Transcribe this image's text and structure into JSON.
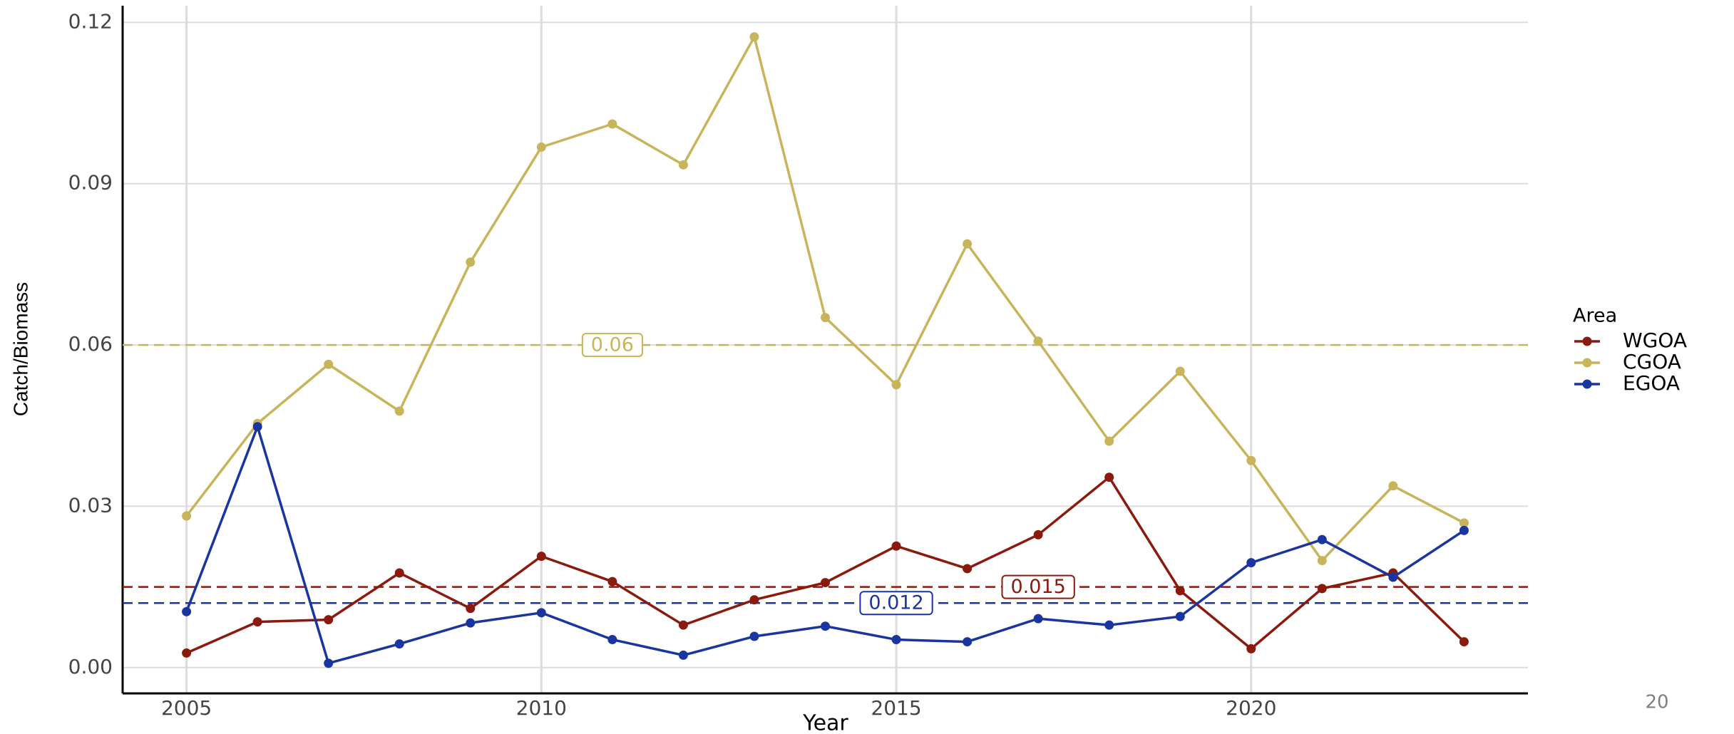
{
  "chart_data": {
    "type": "line",
    "x_label": "Year",
    "y_label": "Catch/Biomass",
    "x": [
      2005,
      2006,
      2007,
      2008,
      2009,
      2010,
      2011,
      2012,
      2013,
      2014,
      2015,
      2016,
      2017,
      2018,
      2019,
      2020,
      2021,
      2022,
      2023
    ],
    "series": [
      {
        "name": "WGOA",
        "color": "#8b1a0e",
        "values": [
          0.0027,
          0.0085,
          0.0089,
          0.0176,
          0.011,
          0.0207,
          0.016,
          0.0079,
          0.0126,
          0.0158,
          0.0226,
          0.0184,
          0.0247,
          0.0354,
          0.0143,
          0.0035,
          0.0147,
          0.0176,
          0.0048
        ]
      },
      {
        "name": "CGOA",
        "color": "#c8b45a",
        "values": [
          0.0282,
          0.0454,
          0.0564,
          0.0477,
          0.0754,
          0.0968,
          0.1011,
          0.0935,
          0.1173,
          0.0651,
          0.0526,
          0.0788,
          0.0607,
          0.0421,
          0.0551,
          0.0385,
          0.0199,
          0.0338,
          0.0269
        ]
      },
      {
        "name": "EGOA",
        "color": "#1a35a0",
        "values": [
          0.0104,
          0.0448,
          0.0008,
          0.0044,
          0.0083,
          0.0102,
          0.0052,
          0.0023,
          0.0058,
          0.0077,
          0.0052,
          0.0048,
          0.0091,
          0.0079,
          0.0095,
          0.0195,
          0.0238,
          0.0168,
          0.0255
        ]
      }
    ],
    "reference_lines": [
      {
        "value": 0.06,
        "color": "#c8b45a",
        "x": 2011
      },
      {
        "value": 0.015,
        "color": "#8b1a0e",
        "x": 2017
      },
      {
        "value": 0.012,
        "color": "#1a35a0",
        "x": 2015
      }
    ],
    "xlim": [
      2004.1,
      2023.9
    ],
    "ylim": [
      -0.0048,
      0.1231
    ],
    "xticks": [
      2005,
      2010,
      2015,
      2020
    ],
    "yticks": [
      {
        "value": 0,
        "label": "0.00"
      },
      0.03,
      0.06,
      0.09,
      0.12
    ],
    "grid": true,
    "legend_title": "Area",
    "legend_position": "right"
  },
  "page_number": "20"
}
